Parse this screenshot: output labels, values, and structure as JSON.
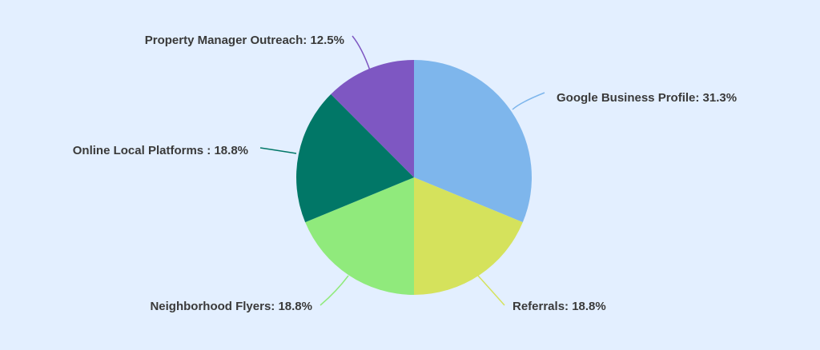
{
  "chart_data": {
    "type": "pie",
    "title": "",
    "slices": [
      {
        "label": "Google Business Profile",
        "value": 31.3,
        "display": "Google Business Profile: 31.3%",
        "color": "#7eb6ec"
      },
      {
        "label": "Referrals",
        "value": 18.8,
        "display": "Referrals: 18.8%",
        "color": "#d5e25c"
      },
      {
        "label": "Neighborhood Flyers",
        "value": 18.8,
        "display": "Neighborhood Flyers: 18.8%",
        "color": "#90ea7c"
      },
      {
        "label": "Online Local Platforms ",
        "value": 18.8,
        "display": "Online Local Platforms : 18.8%",
        "color": "#017767"
      },
      {
        "label": "Property Manager Outreach",
        "value": 12.5,
        "display": "Property Manager Outreach: 12.5%",
        "color": "#7e57c2"
      }
    ],
    "start_angle_deg": 0,
    "direction": "clockwise",
    "legend": "none"
  }
}
